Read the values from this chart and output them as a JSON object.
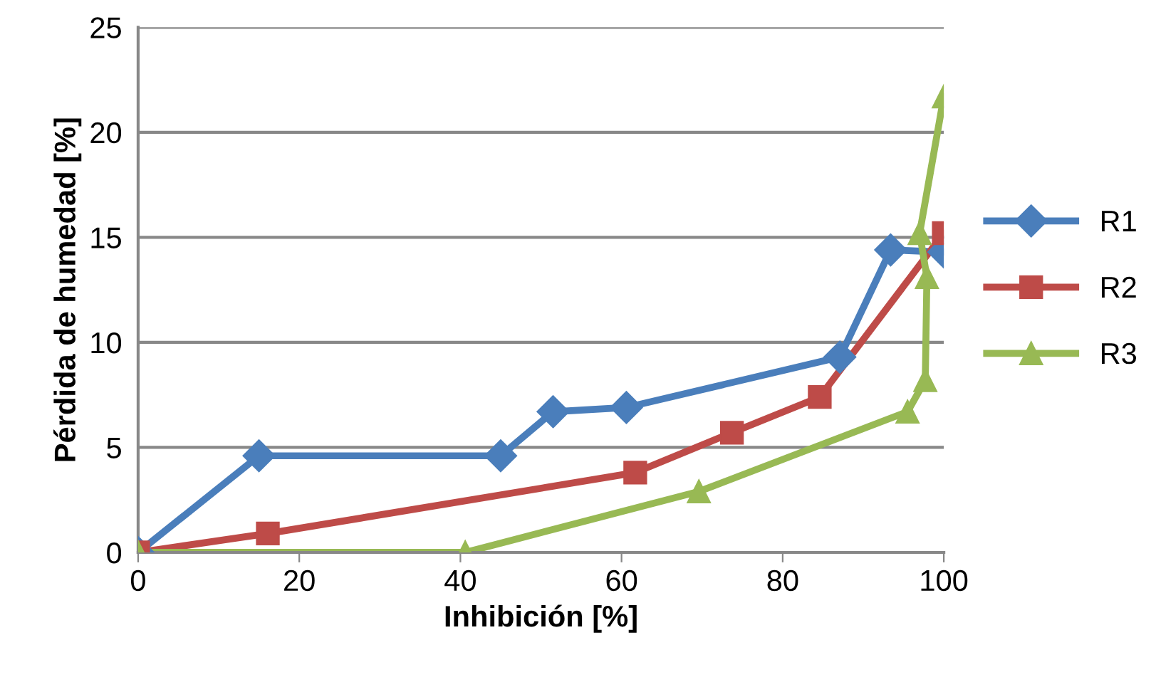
{
  "chart_data": {
    "type": "line",
    "xlabel": "Inhibición [%]",
    "ylabel": "Pérdida de humedad [%]",
    "xlim": [
      0,
      100
    ],
    "xticks": [
      0,
      20,
      40,
      60,
      80,
      100
    ],
    "ylim": [
      0,
      25
    ],
    "yticks": [
      0,
      5,
      10,
      15,
      20,
      25
    ],
    "grid": "y",
    "legend": "right",
    "line_style": "solid",
    "series": [
      {
        "name": "R1",
        "color": "#4a7ebb",
        "marker": "diamond",
        "x": [
          0,
          15,
          45,
          51.5,
          60.6,
          87.1,
          93.4,
          100
        ],
        "values": [
          0,
          4.6,
          4.6,
          6.7,
          6.9,
          9.3,
          14.4,
          14.3
        ]
      },
      {
        "name": "R2",
        "color": "#be4b48",
        "marker": "square",
        "x": [
          0,
          16.1,
          61.7,
          73.7,
          84.6,
          100
        ],
        "values": [
          0,
          0.9,
          3.8,
          5.7,
          7.4,
          15.2
        ]
      },
      {
        "name": "R3",
        "color": "#98b954",
        "marker": "triangle",
        "x": [
          0,
          40.6,
          69.6,
          95.5,
          97.7,
          97.9,
          97,
          100
        ],
        "values": [
          0,
          0,
          2.9,
          6.7,
          8.2,
          13.1,
          15.2,
          21.7
        ]
      }
    ]
  }
}
